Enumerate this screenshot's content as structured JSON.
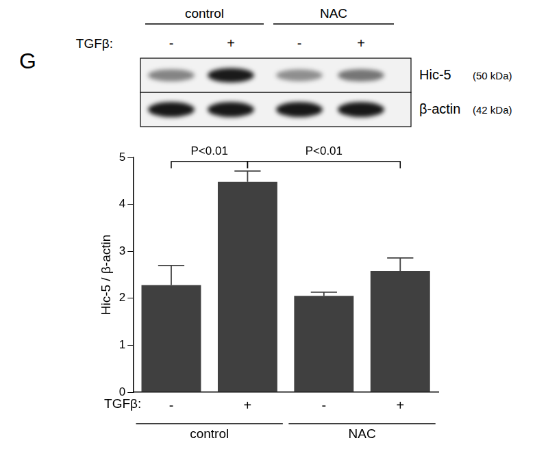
{
  "panel": "G",
  "blot": {
    "rows": [
      {
        "name": "Hic-5",
        "size": "(50 kDa)"
      },
      {
        "name": "β-actin",
        "size": "(42 kDa)"
      }
    ]
  },
  "chart_data": {
    "type": "bar",
    "x_label": "TGFβ:",
    "y_label": "Hic-5 / β-actin",
    "categories": [
      "-",
      "+",
      "-",
      "+"
    ],
    "values": [
      2.28,
      4.48,
      2.05,
      2.58
    ],
    "errors": [
      0.42,
      0.23,
      0.08,
      0.28
    ],
    "groups": [
      {
        "label": "control",
        "span": 2
      },
      {
        "label": "NAC",
        "span": 2
      }
    ],
    "annotations": [
      {
        "text": "P<0.01",
        "from": 0,
        "to": 1
      },
      {
        "text": "P<0.01",
        "from": 1,
        "to": 3
      }
    ],
    "color": "#404040",
    "ylim": [
      0,
      5
    ],
    "yticks": [
      0,
      1,
      2,
      3,
      4,
      5
    ],
    "grid": false
  }
}
